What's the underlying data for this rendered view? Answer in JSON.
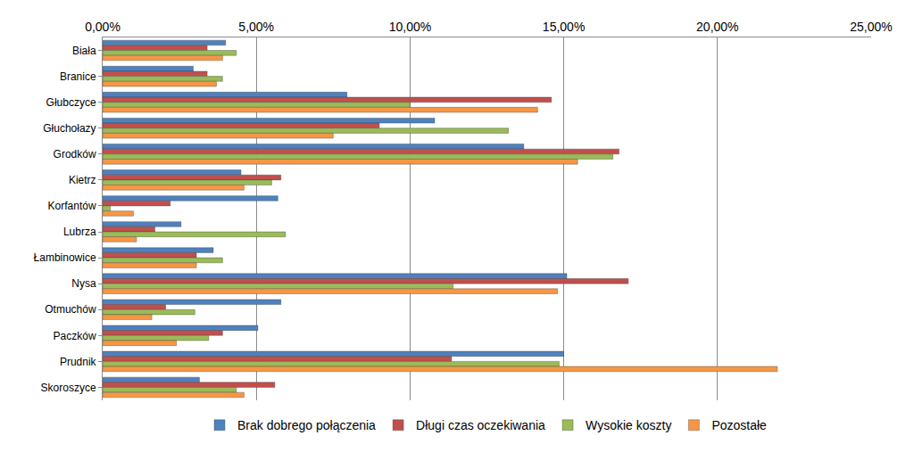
{
  "chart_data": {
    "type": "bar",
    "orientation": "horizontal",
    "grid": true,
    "legend": "bottom",
    "categories": [
      "Biała",
      "Branice",
      "Głubczyce",
      "Głuchołazy",
      "Grodków",
      "Kietrz",
      "Korfantów",
      "Lubrza",
      "Łambinowice",
      "Nysa",
      "Otmuchów",
      "Paczków",
      "Prudnik",
      "Skoroszyce"
    ],
    "series": [
      {
        "name": "Brak dobrego połączenia",
        "color": "#4f81bd",
        "values": [
          4.0,
          2.95,
          7.95,
          10.8,
          13.7,
          4.5,
          5.7,
          2.55,
          3.6,
          15.1,
          5.8,
          5.05,
          15.0,
          3.15
        ]
      },
      {
        "name": "Długi czas oczekiwania",
        "color": "#c0504d",
        "values": [
          3.4,
          3.4,
          14.6,
          9.0,
          16.8,
          5.8,
          2.2,
          1.7,
          3.05,
          17.1,
          2.05,
          3.9,
          11.35,
          5.6
        ]
      },
      {
        "name": "Wysokie koszty",
        "color": "#9bbb59",
        "values": [
          4.35,
          3.9,
          10.0,
          13.2,
          16.6,
          5.5,
          0.25,
          5.95,
          3.9,
          11.4,
          3.0,
          3.45,
          14.85,
          4.35
        ]
      },
      {
        "name": "Pozostałe",
        "color": "#f79646",
        "values": [
          3.9,
          3.7,
          14.15,
          7.5,
          15.45,
          4.6,
          1.0,
          1.1,
          3.05,
          14.8,
          1.6,
          2.4,
          21.95,
          4.6
        ]
      }
    ],
    "xlim": [
      0,
      25
    ],
    "xticks": [
      {
        "value": 0,
        "label": "0,00%"
      },
      {
        "value": 5,
        "label": "5,00%"
      },
      {
        "value": 10,
        "label": "10,00%"
      },
      {
        "value": 15,
        "label": "15,00%"
      },
      {
        "value": 20,
        "label": "20,00%"
      },
      {
        "value": 25,
        "label": "25,00%"
      }
    ]
  }
}
